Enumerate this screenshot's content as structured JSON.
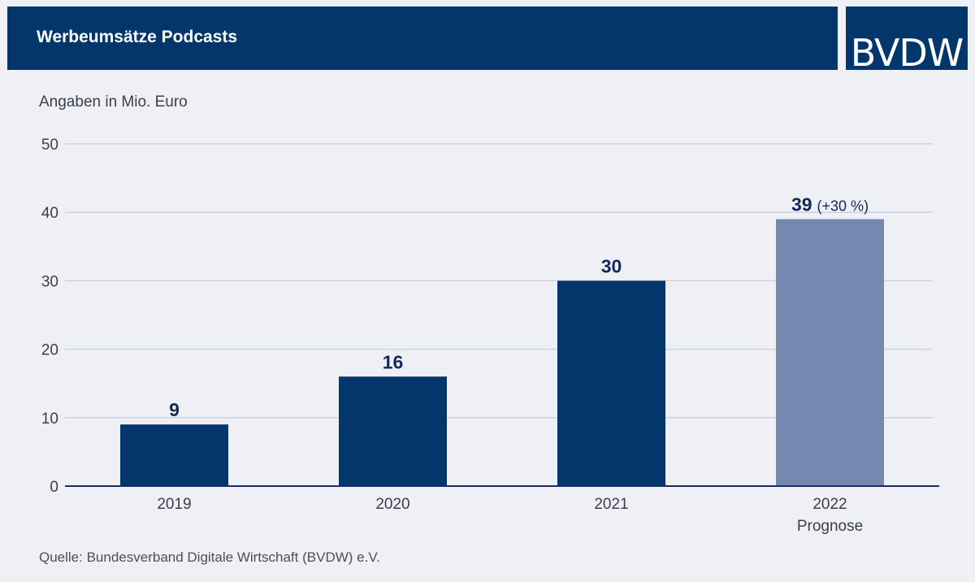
{
  "header": {
    "title": "Werbeumsätze Podcasts",
    "logo_text": "BVDW"
  },
  "unit_label": "Angaben in Mio. Euro",
  "source": "Quelle: Bundesverband Digitale Wirtschaft (BVDW) e.V.",
  "colors": {
    "header_bg": "#03366a",
    "bar": "#03366a",
    "bar_forecast": "#7589b0",
    "gridline": "#cdd1e4",
    "axis": "#1b2a6b",
    "tick_text": "#3a3f4a",
    "value_text": "#15285a"
  },
  "chart_data": {
    "type": "bar",
    "title": "Werbeumsätze Podcasts",
    "ylabel": "Angaben in Mio. Euro",
    "xlabel": "",
    "ylim": [
      0,
      50
    ],
    "yticks": [
      0,
      10,
      20,
      30,
      40,
      50
    ],
    "grid": true,
    "categories": [
      "2019",
      "2020",
      "2021",
      "2022"
    ],
    "category_sublabels": [
      "",
      "",
      "",
      "Prognose"
    ],
    "values": [
      9,
      16,
      30,
      39
    ],
    "value_labels": [
      "9",
      "16",
      "30",
      "39"
    ],
    "value_annotations": [
      "",
      "",
      "",
      "(+30 %)"
    ],
    "forecast": [
      false,
      false,
      false,
      true
    ]
  }
}
